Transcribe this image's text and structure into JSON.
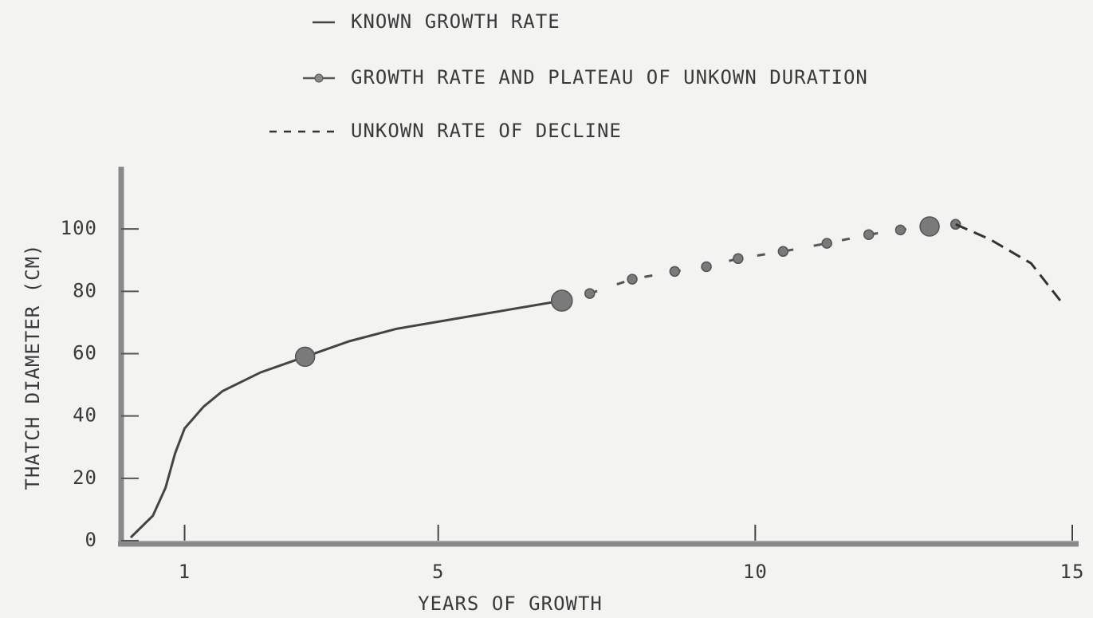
{
  "chart_data": {
    "type": "line",
    "xlabel": "YEARS OF GROWTH",
    "ylabel": "THATCH DIAMETER (CM)",
    "xlim": [
      0,
      15
    ],
    "xticks": [
      1,
      5,
      10,
      15
    ],
    "ylim": [
      0,
      120
    ],
    "yticks": [
      0,
      20,
      40,
      60,
      80,
      100
    ],
    "series": [
      {
        "name": "KNOWN GROWTH RATE",
        "style": "solid",
        "color": "#444444",
        "x": [
          0.15,
          0.5,
          0.7,
          0.85,
          1.0,
          1.3,
          1.6,
          2.2,
          2.9,
          3.6,
          4.35,
          5.5,
          6.95
        ],
        "values": [
          1,
          8,
          17,
          28,
          36,
          43,
          48,
          54,
          59,
          64,
          68,
          72,
          77
        ],
        "point_sizes": [
          null,
          null,
          null,
          null,
          null,
          null,
          null,
          null,
          12,
          null,
          null,
          null,
          13
        ]
      },
      {
        "name": "GROWTH RATE AND PLATEAU OF UNKOWN DURATION",
        "style": "markers",
        "color": "#555555",
        "x": [
          6.95,
          7.39,
          8.06,
          8.73,
          9.23,
          9.73,
          10.44,
          11.13,
          11.79,
          12.29,
          12.75,
          13.16
        ],
        "values": [
          77,
          79.3,
          83.9,
          86.4,
          87.9,
          90.5,
          92.8,
          95.4,
          98.2,
          99.7,
          100.8,
          101.5
        ],
        "point_sizes": [
          13,
          6,
          6,
          6,
          6,
          6,
          6,
          6,
          6,
          6,
          12,
          6
        ]
      },
      {
        "name": "UNKOWN RATE OF DECLINE",
        "style": "dashed",
        "color": "#333333",
        "x": [
          13.16,
          13.7,
          14.35,
          14.85
        ],
        "values": [
          101.5,
          96.7,
          89,
          76
        ]
      }
    ]
  }
}
